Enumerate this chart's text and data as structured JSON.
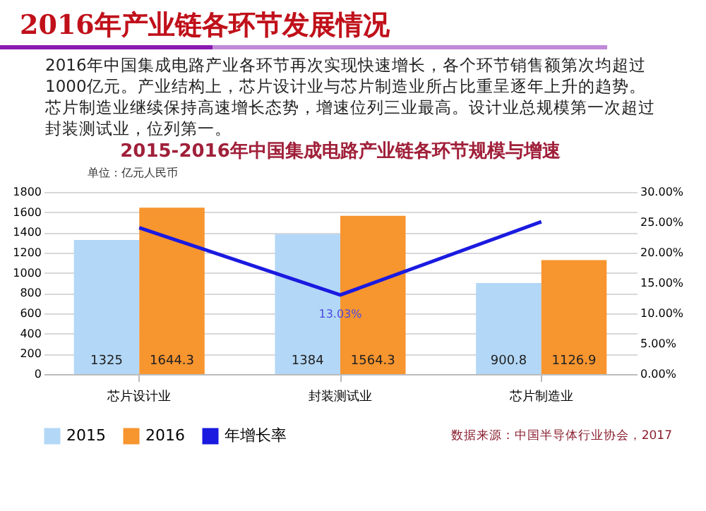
{
  "chart_data": {
    "type": "bar",
    "title": "2016年产业链各环节发展情况",
    "subtitle": "2015-2016年中国集成电路产业链各环节规模与增速",
    "annotations": [
      "2016年中国集成电路产业各环节再次实现快速增长，各个环节销售额第次均超过1000亿元。产业结构上，芯片设计业与芯片制造业所占比重呈逐年上升的趋势。芯片制造业继续保持高速增长态势，增速位列三业最高。设计业总规模第一次超过封装测试业，位列第一。",
      "单位：亿元人民币",
      "数据来源：中国半导体行业协会，2017"
    ],
    "categories": [
      "芯片设计业",
      "封装测试业",
      "芯片制造业"
    ],
    "series": [
      {
        "name": "2015",
        "color": "#b3d7f7",
        "values": [
          1325,
          1384,
          900.8
        ],
        "value_labels": [
          "1325",
          "1384",
          "900.8"
        ]
      },
      {
        "name": "2016",
        "color": "#f7952f",
        "values": [
          1644.3,
          1564.3,
          1126.9
        ],
        "value_labels": [
          "1644.3",
          "1564.3",
          "1126.9"
        ]
      },
      {
        "name": "年增长率",
        "type": "line",
        "axis": "y2",
        "color": "#1a1ae0",
        "values": [
          24.1,
          13.03,
          25.1
        ],
        "value_labels": [
          null,
          "13.03%",
          null
        ]
      }
    ],
    "ylim": [
      0,
      1800
    ],
    "yticks": [
      0,
      200,
      400,
      600,
      800,
      1000,
      1200,
      1400,
      1600,
      1800
    ],
    "y2lim": [
      0,
      30
    ],
    "y2ticks": [
      {
        "value": 0,
        "label": "0.00%"
      },
      {
        "value": 5,
        "label": "5.00%"
      },
      {
        "value": 10,
        "label": "10.00%"
      },
      {
        "value": 15,
        "label": "15.00%"
      },
      {
        "value": 20,
        "label": "20.00%"
      },
      {
        "value": 25,
        "label": "25.00%"
      },
      {
        "value": 30,
        "label": "30.00%"
      }
    ],
    "grid": "y",
    "legend": "bottom",
    "marker": "none",
    "line_style": "solid"
  }
}
